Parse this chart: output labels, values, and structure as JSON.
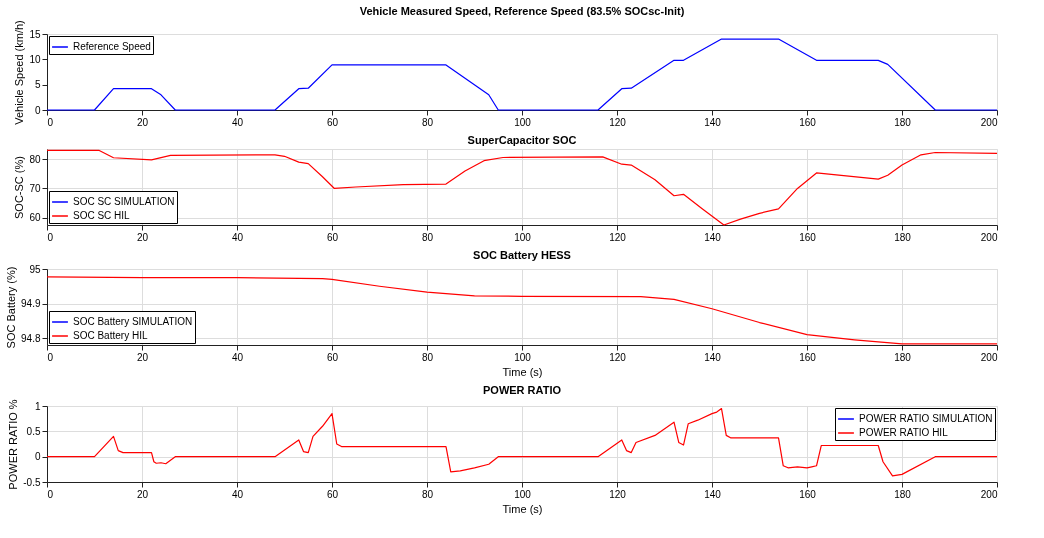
{
  "chart_data": [
    {
      "type": "line",
      "title": "Vehicle Measured Speed, Reference Speed (83.5% SOCsc-Init)",
      "ylabel": "Vehicle Speed (km/h)",
      "xlim": [
        0,
        200
      ],
      "xticks": [
        0,
        20,
        40,
        60,
        80,
        100,
        120,
        140,
        160,
        180,
        200
      ],
      "ylim": [
        0,
        15
      ],
      "yticks": [
        0,
        5,
        10,
        15
      ],
      "grid": false,
      "legend": "top left",
      "marker": "none",
      "line_style": "solid",
      "x": [
        0,
        10,
        14,
        22,
        24,
        27,
        48,
        53,
        55,
        60,
        84,
        93,
        95,
        116,
        121,
        123,
        132,
        134,
        142,
        154,
        162,
        175,
        177,
        187,
        200
      ],
      "series": [
        {
          "name": "Reference Speed",
          "color": "#0000ff",
          "values": [
            0,
            0,
            4.2,
            4.2,
            3,
            0,
            0,
            4.2,
            4.3,
            8.9,
            8.9,
            3,
            0,
            0,
            4.2,
            4.3,
            9.8,
            9.8,
            14,
            14,
            9.8,
            9.8,
            9,
            0,
            0
          ]
        }
      ]
    },
    {
      "type": "line",
      "title": "SuperCapacitor SOC",
      "ylabel": "SOC-SC (%)",
      "xlim": [
        0,
        200
      ],
      "xticks": [
        0,
        20,
        40,
        60,
        80,
        100,
        120,
        140,
        160,
        180,
        200
      ],
      "ylim": [
        57.5,
        83.5
      ],
      "yticks": [
        60,
        70,
        80
      ],
      "grid": true,
      "legend": "bottom left",
      "marker": "none",
      "line_style": "solid",
      "x": [
        0,
        11,
        14,
        22,
        26,
        48,
        50,
        53,
        55,
        58,
        60.5,
        65,
        75,
        84,
        88,
        92,
        96,
        117,
        121,
        123,
        128,
        132,
        134,
        138,
        142.5,
        146,
        150,
        154,
        158,
        162,
        175,
        177,
        180,
        184,
        187,
        200
      ],
      "series": [
        {
          "name": "SOC SC SIMULATION",
          "color": "#0000ff",
          "values": [
            null,
            null,
            null,
            null,
            null,
            null,
            null,
            null,
            null,
            null,
            null,
            null,
            null,
            null,
            null,
            null,
            null,
            null,
            null,
            null,
            null,
            null,
            null,
            null,
            null,
            null,
            null,
            null,
            null,
            null,
            null,
            null,
            null,
            null,
            null,
            null
          ]
        },
        {
          "name": "SOC SC HIL",
          "color": "#ff0000",
          "values": [
            83,
            83,
            80.5,
            79.8,
            81.3,
            81.5,
            81,
            79,
            78.5,
            74,
            70,
            70.5,
            71.3,
            71.5,
            76,
            79.5,
            80.6,
            80.8,
            78.3,
            78,
            73,
            67.5,
            68,
            63,
            57.5,
            59.5,
            61.5,
            63,
            70,
            75.3,
            73.2,
            74.5,
            78,
            81.5,
            82.3,
            82
          ]
        }
      ]
    },
    {
      "type": "line",
      "title": "SOC Battery HESS",
      "xlabel": "Time (s)",
      "ylabel": "SOC Battery (%)",
      "xlim": [
        0,
        200
      ],
      "xticks": [
        0,
        20,
        40,
        60,
        80,
        100,
        120,
        140,
        160,
        180,
        200
      ],
      "ylim": [
        94.78,
        95
      ],
      "yticks": [
        94.8,
        94.9,
        95
      ],
      "grid": true,
      "legend": "bottom left",
      "marker": "none",
      "line_style": "solid",
      "x": [
        0,
        20,
        40,
        58,
        60,
        70,
        80,
        90,
        100,
        125,
        132,
        140,
        150,
        160,
        170,
        180,
        200
      ],
      "series": [
        {
          "name": "SOC Battery SIMULATION",
          "color": "#0000ff",
          "values": [
            null,
            null,
            null,
            null,
            null,
            null,
            null,
            null,
            null,
            null,
            null,
            null,
            null,
            null,
            null,
            null,
            null
          ]
        },
        {
          "name": "SOC Battery HIL",
          "color": "#ff0000",
          "values": [
            94.977,
            94.975,
            94.975,
            94.972,
            94.97,
            94.95,
            94.933,
            94.922,
            94.921,
            94.92,
            94.912,
            94.885,
            94.845,
            94.81,
            94.795,
            94.783,
            94.783
          ]
        }
      ]
    },
    {
      "type": "line",
      "title": "POWER RATIO",
      "xlabel": "Time (s)",
      "ylabel": "POWER RATIO %",
      "xlim": [
        0,
        200
      ],
      "xticks": [
        0,
        20,
        40,
        60,
        80,
        100,
        120,
        140,
        160,
        180,
        200
      ],
      "ylim": [
        -0.5,
        1
      ],
      "yticks": [
        -0.5,
        0,
        0.5,
        1
      ],
      "grid": true,
      "legend": "top right",
      "marker": "none",
      "line_style": "solid",
      "x": [
        0,
        10,
        14,
        15,
        16,
        22,
        22.5,
        23,
        24,
        25,
        27,
        48,
        53,
        54,
        55,
        56,
        58,
        60,
        61,
        62,
        84,
        85,
        87,
        90,
        93,
        95,
        116,
        121,
        122,
        123,
        124,
        128,
        132,
        133,
        134,
        135,
        137,
        140,
        141,
        142,
        143,
        144,
        154,
        155,
        156,
        158,
        160,
        161,
        162,
        163,
        175,
        176,
        178,
        180,
        187,
        200
      ],
      "series": [
        {
          "name": "POWER RATIO SIMULATION",
          "color": "#0000ff",
          "values": [
            null,
            null,
            null,
            null,
            null,
            null,
            null,
            null,
            null,
            null,
            null,
            null,
            null,
            null,
            null,
            null,
            null,
            null,
            null,
            null,
            null,
            null,
            null,
            null,
            null,
            null,
            null,
            null,
            null,
            null,
            null,
            null,
            null,
            null,
            null,
            null,
            null,
            null,
            null,
            null,
            null,
            null,
            null,
            null,
            null,
            null,
            null,
            null,
            null,
            null,
            null,
            null,
            null,
            null,
            null,
            null
          ]
        },
        {
          "name": "POWER RATIO HIL",
          "color": "#ff0000",
          "values": [
            0,
            0,
            0.4,
            0.12,
            0.08,
            0.08,
            -0.1,
            -0.13,
            -0.12,
            -0.14,
            0,
            0,
            0.33,
            0.1,
            0.08,
            0.4,
            0.6,
            0.85,
            0.25,
            0.2,
            0.2,
            -0.3,
            -0.28,
            -0.22,
            -0.15,
            0,
            0,
            0.33,
            0.12,
            0.08,
            0.28,
            0.42,
            0.68,
            0.28,
            0.23,
            0.65,
            0.72,
            0.85,
            0.88,
            0.95,
            0.42,
            0.37,
            0.37,
            -0.18,
            -0.22,
            -0.2,
            -0.22,
            -0.2,
            -0.18,
            0.22,
            0.22,
            -0.1,
            -0.38,
            -0.35,
            0,
            0
          ]
        }
      ]
    }
  ]
}
